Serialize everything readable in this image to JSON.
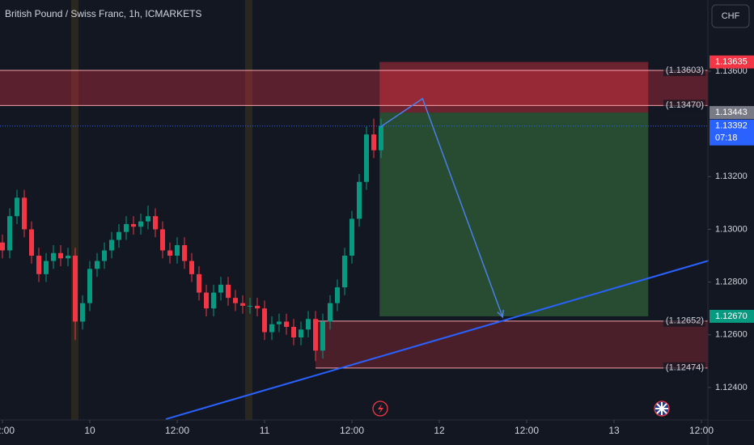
{
  "chart_data": {
    "type": "candlestick",
    "title": "British Pound / Swiss Franc, 1h, ICMARKETS",
    "currency_button": "CHF",
    "up_color": "#089981",
    "down_color": "#f23645",
    "x": [
      -12,
      -11,
      -10,
      -9,
      -8,
      -7,
      -6,
      -5,
      -4,
      -3,
      -2,
      -1,
      0,
      1,
      2,
      3,
      4,
      5,
      6,
      7,
      8,
      9,
      10,
      11,
      12,
      13,
      14,
      15,
      16,
      17,
      18,
      19,
      20,
      21,
      22,
      23,
      24,
      25,
      26,
      27,
      28,
      29,
      30,
      31,
      32,
      33,
      34,
      35,
      36,
      37,
      38,
      39,
      40
    ],
    "open": [
      1.1295,
      1.1292,
      1.1305,
      1.1312,
      1.13,
      1.129,
      1.1283,
      1.1288,
      1.1291,
      1.1289,
      1.129,
      1.1265,
      1.1272,
      1.1285,
      1.1288,
      1.1292,
      1.1296,
      1.1299,
      1.1302,
      1.1301,
      1.1303,
      1.1305,
      1.13,
      1.1292,
      1.129,
      1.1294,
      1.1288,
      1.1283,
      1.1276,
      1.127,
      1.1276,
      1.1279,
      1.1274,
      1.1272,
      1.1271,
      1.1271,
      1.127,
      1.1261,
      1.1264,
      1.1265,
      1.1263,
      1.1259,
      1.1262,
      1.1266,
      1.1254,
      1.1265,
      1.1272,
      1.1278,
      1.129,
      1.1304,
      1.1318,
      1.1336,
      1.133
    ],
    "high": [
      1.1298,
      1.1308,
      1.1315,
      1.1315,
      1.1303,
      1.1293,
      1.1291,
      1.1294,
      1.1294,
      1.1293,
      1.1293,
      1.1275,
      1.1288,
      1.1291,
      1.1295,
      1.1299,
      1.1302,
      1.1305,
      1.1305,
      1.1306,
      1.1309,
      1.1308,
      1.1303,
      1.1295,
      1.1297,
      1.1297,
      1.1291,
      1.1286,
      1.1279,
      1.1279,
      1.1282,
      1.1282,
      1.1277,
      1.1275,
      1.1274,
      1.1274,
      1.1273,
      1.1267,
      1.1268,
      1.1268,
      1.1266,
      1.1265,
      1.1269,
      1.1269,
      1.1268,
      1.1275,
      1.1281,
      1.1293,
      1.1307,
      1.1321,
      1.1339,
      1.1342,
      1.1342
    ],
    "low": [
      1.1289,
      1.1289,
      1.1302,
      1.1297,
      1.1287,
      1.128,
      1.128,
      1.1285,
      1.1286,
      1.1286,
      1.1258,
      1.1262,
      1.1269,
      1.1282,
      1.1285,
      1.1289,
      1.1293,
      1.1296,
      1.1298,
      1.1298,
      1.13,
      1.1297,
      1.1289,
      1.1287,
      1.1287,
      1.1285,
      1.128,
      1.1273,
      1.1267,
      1.1267,
      1.1273,
      1.1271,
      1.1269,
      1.1268,
      1.1268,
      1.1267,
      1.1258,
      1.1258,
      1.1261,
      1.126,
      1.1256,
      1.1256,
      1.1259,
      1.125,
      1.1251,
      1.1262,
      1.1269,
      1.1275,
      1.1287,
      1.1301,
      1.1315,
      1.1327,
      1.1327
    ],
    "close": [
      1.1292,
      1.1305,
      1.1312,
      1.13,
      1.129,
      1.1283,
      1.1288,
      1.1291,
      1.1289,
      1.129,
      1.1265,
      1.1272,
      1.1285,
      1.1288,
      1.1292,
      1.1296,
      1.1299,
      1.1302,
      1.1301,
      1.1303,
      1.1305,
      1.13,
      1.1292,
      1.129,
      1.1294,
      1.1288,
      1.1283,
      1.1276,
      1.127,
      1.1276,
      1.1279,
      1.1274,
      1.1272,
      1.1271,
      1.1271,
      1.127,
      1.1261,
      1.1264,
      1.1265,
      1.1263,
      1.1259,
      1.1262,
      1.1266,
      1.1254,
      1.1265,
      1.1272,
      1.1278,
      1.129,
      1.1304,
      1.1318,
      1.1336,
      1.133,
      1.13392
    ],
    "xlim": [
      -12.333,
      84.889
    ],
    "ylim": [
      1.1387,
      1.12277
    ],
    "xticks": [
      {
        "value": -12,
        "label": "12:00"
      },
      {
        "value": 0,
        "label": "10"
      },
      {
        "value": 12,
        "label": "12:00"
      },
      {
        "value": 24,
        "label": "11"
      },
      {
        "value": 36,
        "label": "12:00"
      },
      {
        "value": 48,
        "label": "12"
      },
      {
        "value": 60,
        "label": "12:00"
      },
      {
        "value": 72,
        "label": "13"
      },
      {
        "value": 84,
        "label": "12:00"
      }
    ],
    "yticks": [
      {
        "value": 1.136,
        "label": "1.13600"
      },
      {
        "value": 1.132,
        "label": "1.13200"
      },
      {
        "value": 1.13,
        "label": "1.13000"
      },
      {
        "value": 1.128,
        "label": "1.12800"
      },
      {
        "value": 1.126,
        "label": "1.12600"
      },
      {
        "value": 1.124,
        "label": "1.12400"
      }
    ],
    "levels": [
      {
        "value": 1.13603,
        "label": "(1.13603)"
      },
      {
        "value": 1.1347,
        "label": "(1.13470)"
      },
      {
        "value": 1.12652,
        "label": "(1.12652)"
      },
      {
        "value": 1.12474,
        "label": "(1.12474)"
      }
    ],
    "zones": [
      {
        "x": [
          -12.333,
          84.889
        ],
        "y": [
          1.13603,
          1.1347
        ],
        "color": "rgba(242,54,69,0.32)"
      },
      {
        "x": [
          31,
          84.889
        ],
        "y": [
          1.12652,
          1.12474
        ],
        "color": "rgba(242,54,69,0.25)"
      }
    ],
    "position": {
      "x": [
        39.8,
        76.7
      ],
      "stop": {
        "value": 1.13635,
        "label": "1.13635"
      },
      "entry": {
        "value": 1.13443,
        "label": "1.13443"
      },
      "target": {
        "value": 1.1267,
        "label": "1.12670"
      }
    },
    "last_price": {
      "value": 1.13392,
      "label": "1.13392"
    },
    "countdown": "07:18",
    "trend_line": {
      "x": [
        10.44,
        85.1
      ],
      "y": [
        1.1228,
        1.12882
      ],
      "color": "#2962ff"
    },
    "arrow": {
      "x": [
        39.9,
        45.7,
        56.7
      ],
      "y": [
        1.13388,
        1.13496,
        1.12667
      ],
      "color": "#4a7fe8"
    }
  }
}
